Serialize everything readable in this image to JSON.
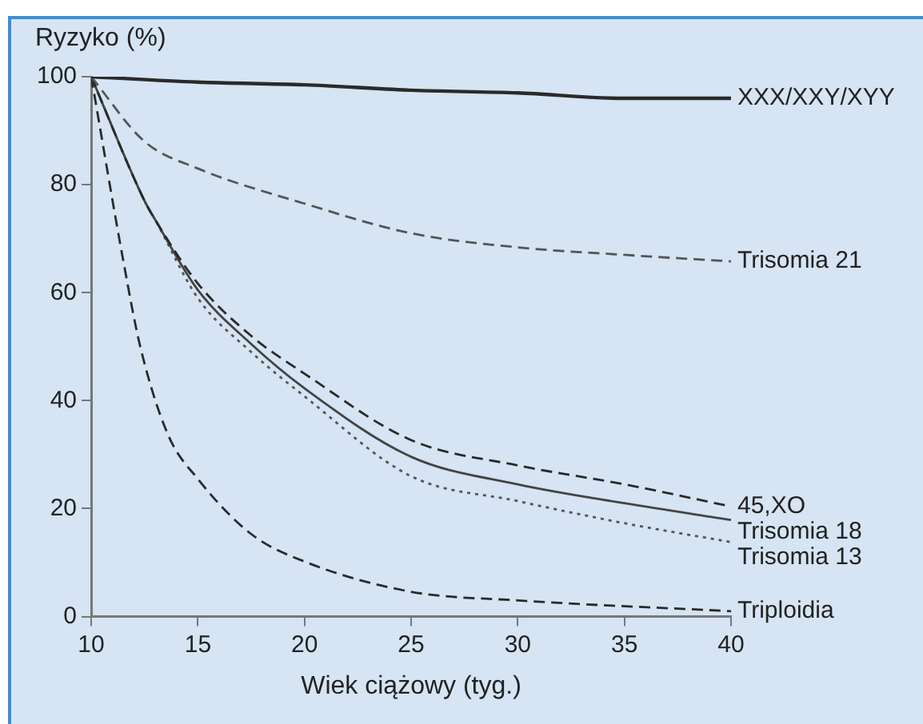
{
  "chart_data": {
    "type": "line",
    "xlabel": "Wiek ciążowy (tyg.)",
    "ylabel": "Ryzyko (%)",
    "xlim": [
      10,
      40
    ],
    "xticks": [
      10,
      15,
      20,
      25,
      30,
      35,
      40
    ],
    "ylim": [
      0,
      100
    ],
    "yticks": [
      0,
      20,
      40,
      60,
      80,
      100
    ],
    "grid": false,
    "legend": false,
    "marker": "none",
    "series": [
      {
        "name": "XXX/XXY/XYY",
        "color": "#2a2a2a",
        "line_style": "solid",
        "x": [
          10,
          15,
          20,
          25,
          30,
          35,
          40
        ],
        "values": [
          100,
          99,
          98.5,
          97.5,
          97,
          96,
          96
        ]
      },
      {
        "name": "Trisomia 21",
        "color": "#555555",
        "line_style": "dashed",
        "x": [
          10,
          12.5,
          15,
          20,
          25,
          30,
          35,
          40
        ],
        "values": [
          100,
          88,
          83,
          76.5,
          71,
          68.4,
          67,
          65.8
        ]
      },
      {
        "name": "45,XO",
        "color": "#2a2a2a",
        "line_style": "dashed",
        "x": [
          10,
          12.5,
          13,
          15,
          17.5,
          20,
          25,
          30,
          35,
          40
        ],
        "values": [
          100,
          77,
          73.5,
          61.7,
          52,
          45,
          32.7,
          28,
          24.5,
          20.4
        ]
      },
      {
        "name": "Trisomia 18",
        "color": "#444444",
        "line_style": "solid",
        "x": [
          10,
          12.5,
          13,
          15,
          17.5,
          20,
          25,
          30,
          35,
          40
        ],
        "values": [
          100,
          77,
          73.5,
          60.5,
          50.5,
          42.3,
          29.6,
          24.5,
          21,
          17.9
        ]
      },
      {
        "name": "Trisomia 13",
        "color": "#555555",
        "line_style": "dotted",
        "x": [
          10,
          12.5,
          13,
          15,
          17.5,
          20,
          25,
          30,
          35,
          40
        ],
        "values": [
          100,
          77,
          73.5,
          59,
          49,
          40.8,
          26,
          21.4,
          17.3,
          13.8
        ]
      },
      {
        "name": "Triploidia",
        "color": "#2a2a2a",
        "line_style": "dashed",
        "x": [
          10,
          11.5,
          12.3,
          13.6,
          15,
          17.5,
          20,
          25,
          30,
          40
        ],
        "values": [
          100,
          66,
          50,
          33.7,
          25.5,
          15.3,
          10.2,
          4.6,
          3,
          1
        ]
      }
    ]
  }
}
